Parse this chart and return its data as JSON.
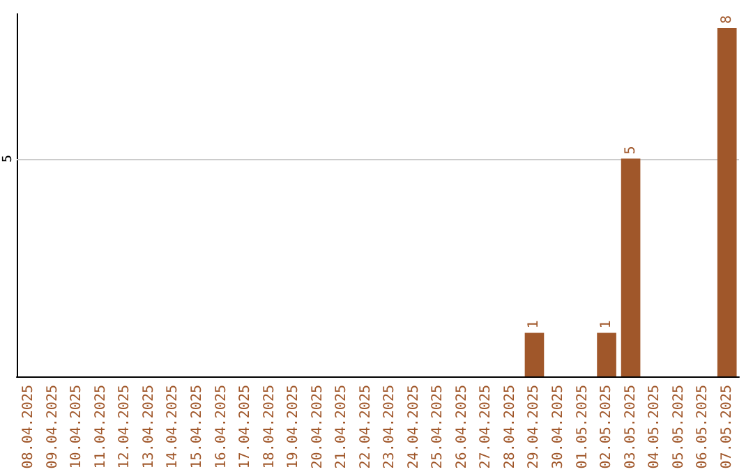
{
  "chart_data": {
    "type": "bar",
    "categories": [
      "08.04.2025",
      "09.04.2025",
      "10.04.2025",
      "11.04.2025",
      "12.04.2025",
      "13.04.2025",
      "14.04.2025",
      "15.04.2025",
      "16.04.2025",
      "17.04.2025",
      "18.04.2025",
      "19.04.2025",
      "20.04.2025",
      "21.04.2025",
      "22.04.2025",
      "23.04.2025",
      "24.04.2025",
      "25.04.2025",
      "26.04.2025",
      "27.04.2025",
      "28.04.2025",
      "29.04.2025",
      "30.04.2025",
      "01.05.2025",
      "02.05.2025",
      "03.05.2025",
      "04.05.2025",
      "05.05.2025",
      "06.05.2025",
      "07.05.2025"
    ],
    "values": [
      null,
      null,
      null,
      null,
      null,
      null,
      null,
      null,
      null,
      null,
      null,
      null,
      null,
      null,
      null,
      null,
      null,
      null,
      null,
      null,
      null,
      1,
      null,
      null,
      1,
      5,
      null,
      null,
      null,
      8
    ],
    "data_labels": true,
    "color": "#a0572a",
    "ref_lines": [
      {
        "axis": "y",
        "value": 5,
        "label": "5",
        "color": "#cccccc"
      }
    ]
  }
}
